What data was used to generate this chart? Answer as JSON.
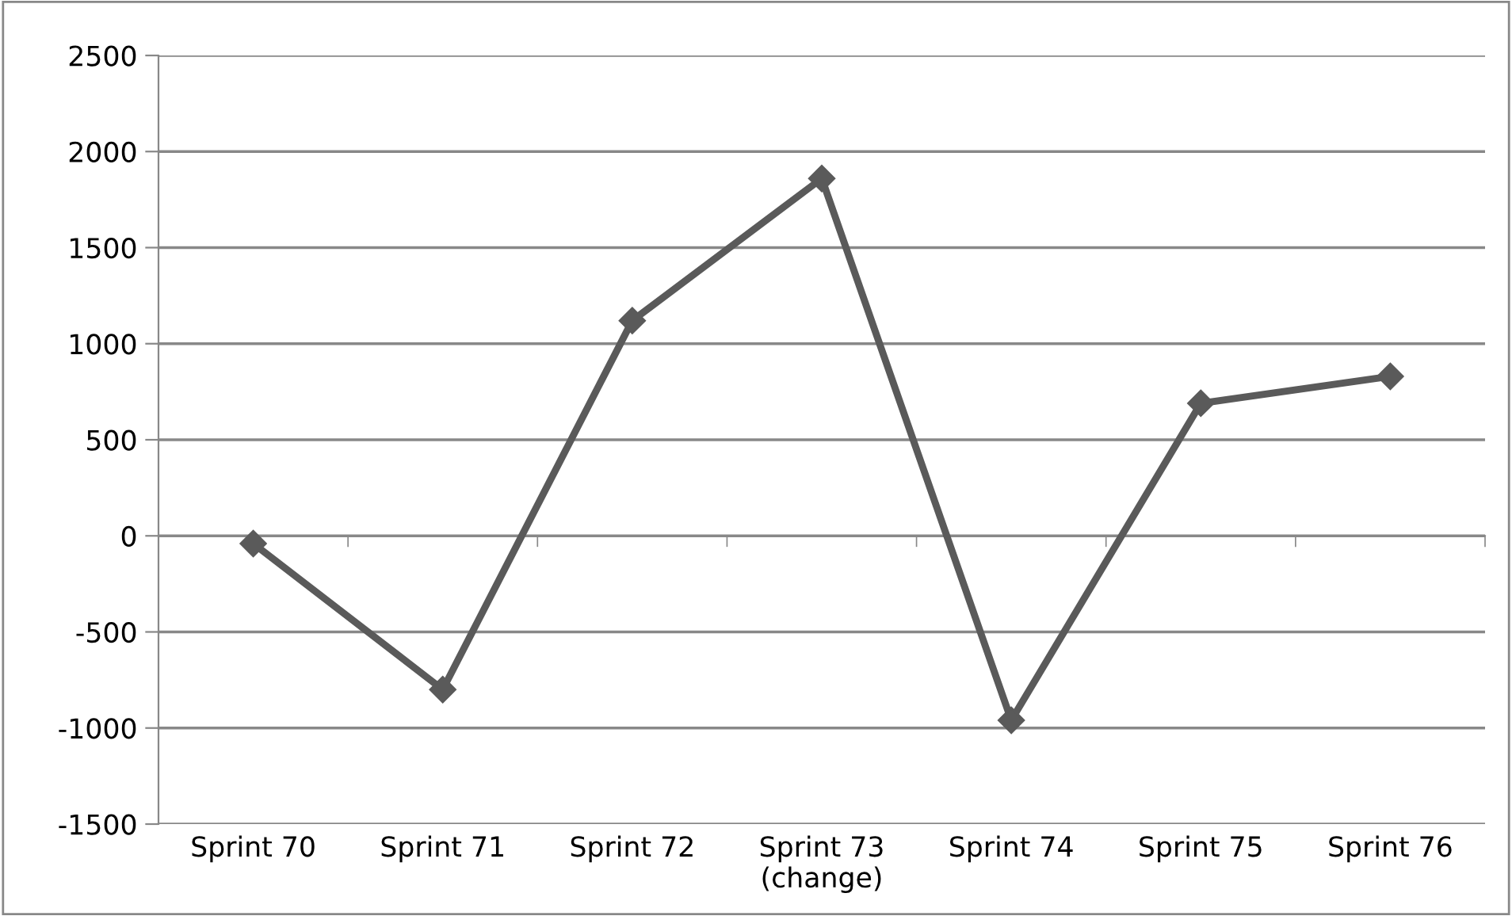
{
  "chart_data": {
    "type": "line",
    "categories": [
      "Sprint 70",
      "Sprint 71",
      "Sprint 72",
      "Sprint 73\n(change)",
      "Sprint 74",
      "Sprint 75",
      "Sprint 76"
    ],
    "series": [
      {
        "color": "#5a5a5a",
        "values": [
          -40,
          -800,
          1120,
          1860,
          -960,
          690,
          830
        ]
      }
    ],
    "ylim": [
      -1500,
      2500
    ],
    "yticks": [
      -1500,
      -1000,
      -500,
      0,
      500,
      1000,
      1500,
      2000,
      2500
    ],
    "grid": "y",
    "legend": false,
    "marker": "diamond",
    "line_style": "solid"
  }
}
